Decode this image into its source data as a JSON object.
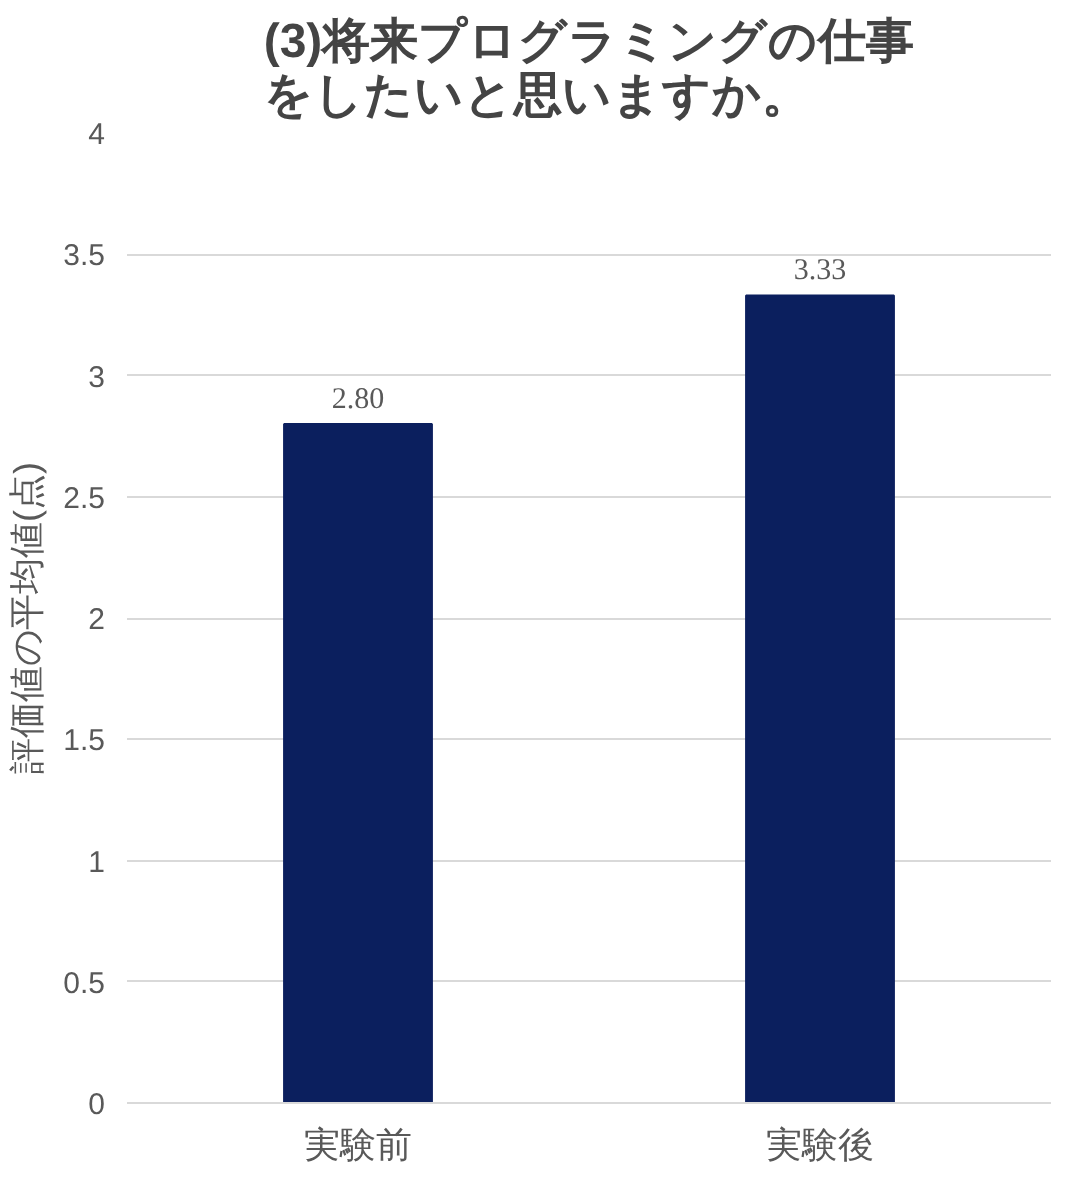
{
  "chart_data": {
    "type": "bar",
    "title": "(3)将来プログラミングの仕事をしたいと思いますか。",
    "ylabel": "評価値の平均値(点)",
    "categories": [
      "実験前",
      "実験後"
    ],
    "values": [
      2.8,
      3.33
    ],
    "value_labels": [
      "2.80",
      "3.33"
    ],
    "color": "#0b1f5e",
    "ylim": [
      0,
      4
    ],
    "yticks": [
      0,
      0.5,
      1,
      1.5,
      2,
      2.5,
      3,
      3.5,
      4
    ],
    "grid": "y"
  }
}
